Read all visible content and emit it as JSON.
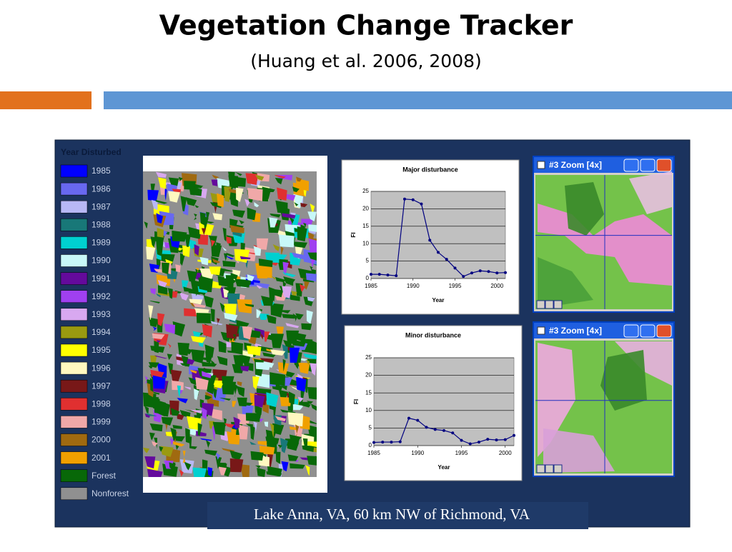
{
  "title": "Vegetation Change Tracker",
  "subtitle": "(Huang et al. 2006, 2008)",
  "legend": {
    "title": "Year Disturbed",
    "items": [
      {
        "label": "1985",
        "color": "#0000ff"
      },
      {
        "label": "1986",
        "color": "#6868f0"
      },
      {
        "label": "1987",
        "color": "#b8b8f5"
      },
      {
        "label": "1988",
        "color": "#187878"
      },
      {
        "label": "1989",
        "color": "#00d0d0"
      },
      {
        "label": "1990",
        "color": "#c8f8f8"
      },
      {
        "label": "1991",
        "color": "#640a9c"
      },
      {
        "label": "1992",
        "color": "#a040f0"
      },
      {
        "label": "1993",
        "color": "#d8a8f0"
      },
      {
        "label": "1994",
        "color": "#9a9a10"
      },
      {
        "label": "1995",
        "color": "#ffff00"
      },
      {
        "label": "1996",
        "color": "#fff8c0"
      },
      {
        "label": "1997",
        "color": "#781818"
      },
      {
        "label": "1998",
        "color": "#e03030"
      },
      {
        "label": "1999",
        "color": "#f0a8a8"
      },
      {
        "label": "2000",
        "color": "#a06a10"
      },
      {
        "label": "2001",
        "color": "#f0a000"
      },
      {
        "label": "Forest",
        "color": "#086808"
      },
      {
        "label": "Nonforest",
        "color": "#909090"
      }
    ]
  },
  "windows": [
    {
      "title": "#3 Zoom [4x]"
    },
    {
      "title": "#3 Zoom [4x]"
    }
  ],
  "caption": "Lake Anna, VA, 60 km NW of Richmond, VA",
  "chart_data": [
    {
      "type": "line",
      "title": "Major disturbance",
      "x_label": "Year",
      "y_label": "FI",
      "x": [
        1985,
        1986,
        1987,
        1988,
        1989,
        1990,
        1991,
        1992,
        1993,
        1994,
        1995,
        1996,
        1997,
        1998,
        1999,
        2000,
        2001
      ],
      "values": [
        1.2,
        1.2,
        1.0,
        0.8,
        22.8,
        22.6,
        21.4,
        11,
        7.5,
        5.5,
        3,
        0.6,
        1.6,
        2.2,
        2.0,
        1.6,
        1.7
      ],
      "color": "#000080",
      "xlim": [
        1985,
        2001
      ],
      "xticks": [
        1985,
        1990,
        1995,
        2000
      ],
      "ylim": [
        0,
        25
      ],
      "yticks": [
        0,
        5,
        10,
        15,
        20,
        25
      ],
      "grid": true
    },
    {
      "type": "line",
      "title": "Minor disturbance",
      "x_label": "Year",
      "y_label": "FI",
      "x": [
        1985,
        1986,
        1987,
        1988,
        1989,
        1990,
        1991,
        1992,
        1993,
        1994,
        1995,
        1996,
        1997,
        1998,
        1999,
        2000,
        2001
      ],
      "values": [
        0.9,
        1.0,
        1.0,
        1.1,
        7.8,
        7.2,
        5.2,
        4.6,
        4.3,
        3.6,
        1.5,
        0.5,
        1.0,
        1.8,
        1.6,
        1.7,
        2.9
      ],
      "color": "#000080",
      "xlim": [
        1985,
        2001
      ],
      "xticks": [
        1985,
        1990,
        1995,
        2000
      ],
      "ylim": [
        0,
        25
      ],
      "yticks": [
        0,
        5,
        10,
        15,
        20,
        25
      ],
      "grid": true
    }
  ]
}
